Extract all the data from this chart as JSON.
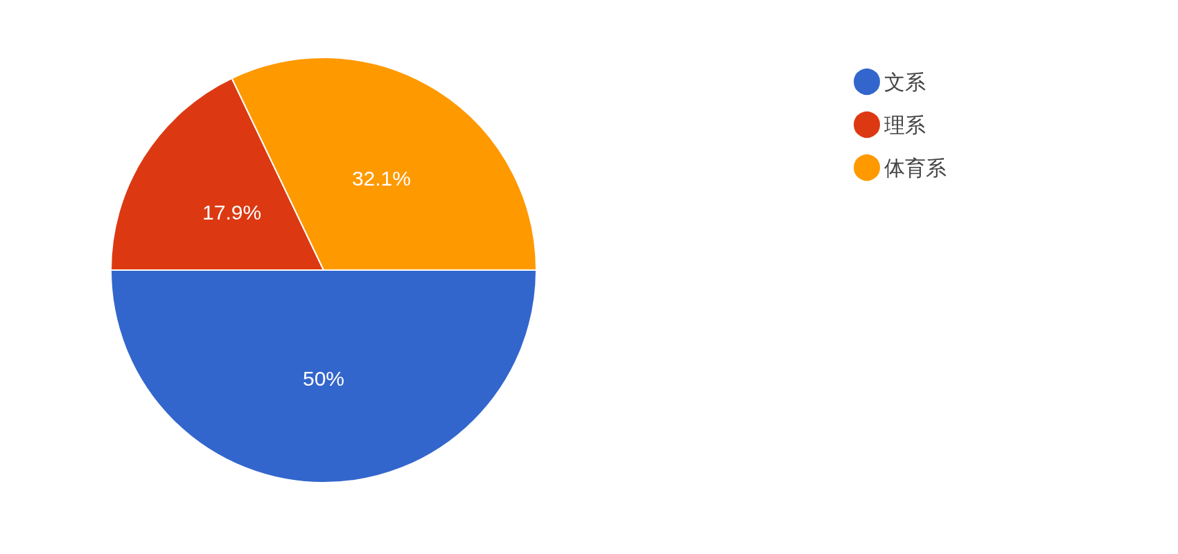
{
  "chart_data": {
    "type": "pie",
    "categories": [
      "文系",
      "理系",
      "体育系"
    ],
    "values": [
      50,
      17.9,
      32.1
    ],
    "colors": [
      "#3366cc",
      "#dc3912",
      "#ff9900"
    ],
    "value_labels": [
      "50%",
      "17.9%",
      "32.1%"
    ],
    "legend": "top right"
  }
}
